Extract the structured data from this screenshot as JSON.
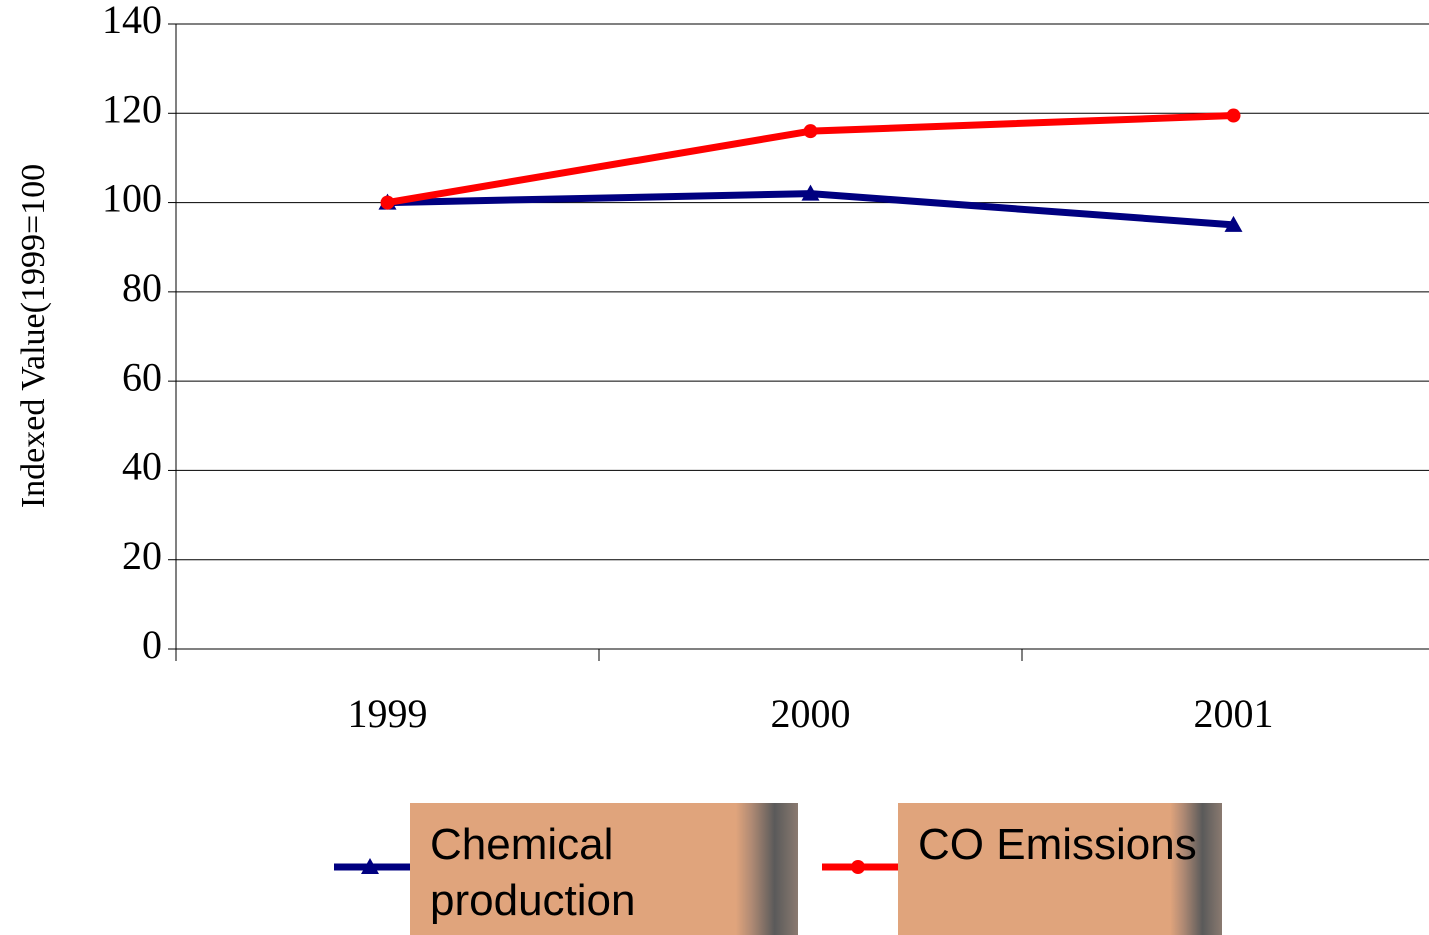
{
  "chart_data": {
    "type": "line",
    "y_label": "Indexed Value(1999=100",
    "categories": [
      "1999",
      "2000",
      "2001"
    ],
    "series": [
      {
        "name": "Chemical production",
        "color": "#000080",
        "marker": "triangle",
        "values": [
          100,
          102,
          95
        ]
      },
      {
        "name": "CO Emissions",
        "color": "#ff0000",
        "marker": "circle",
        "values": [
          100,
          116,
          119.5
        ]
      }
    ],
    "ylim": [
      0,
      140
    ],
    "yticks": [
      0,
      20,
      40,
      60,
      80,
      100,
      120,
      140
    ],
    "grid": true,
    "legend": "bottom"
  }
}
